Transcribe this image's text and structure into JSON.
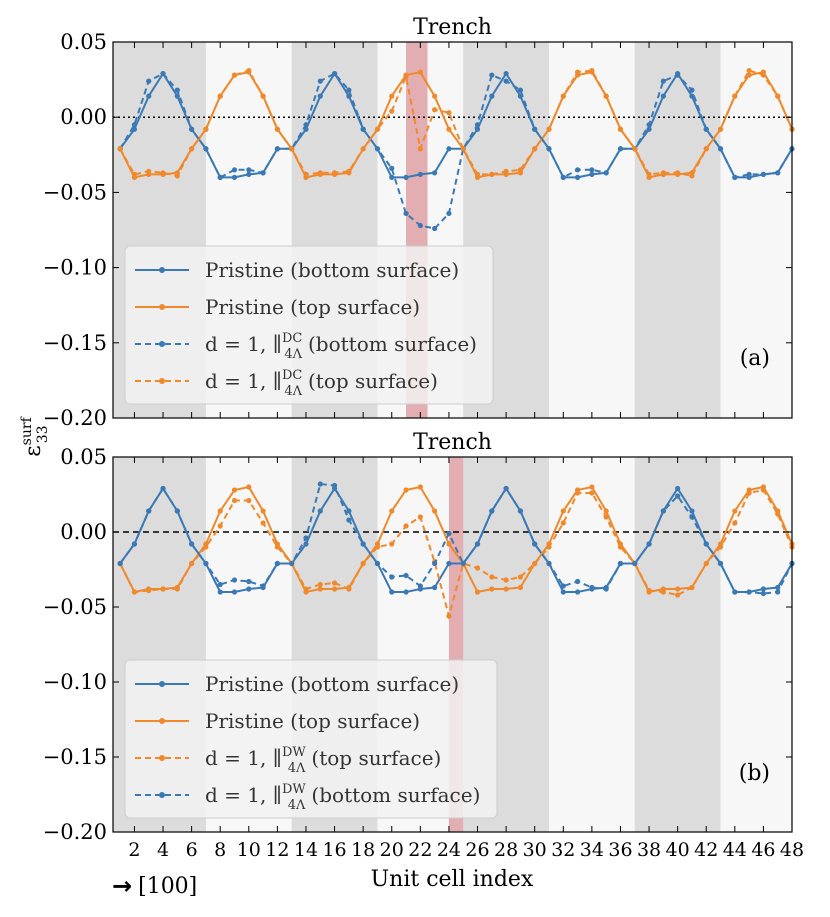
{
  "figure": {
    "y_axis_label_main": "ε",
    "y_axis_label_sub": "33",
    "y_axis_label_sup": "surf",
    "x_axis_label": "Unit cell index",
    "direction_note": "[100]",
    "arrow_icon": "→"
  },
  "colors": {
    "blue": "#3b79b5",
    "orange": "#f0892b",
    "trench": "#c8555a",
    "band_dark": "#dcdcdc",
    "band_light": "#f7f7f7"
  },
  "chart_data": [
    {
      "type": "line",
      "title": "Trench",
      "panel_label": "(a)",
      "xlim": [
        0.5,
        48
      ],
      "ylim": [
        -0.2,
        0.05
      ],
      "xticks": [
        2,
        4,
        6,
        8,
        10,
        12,
        14,
        16,
        18,
        20,
        22,
        24,
        26,
        28,
        30,
        32,
        34,
        36,
        38,
        40,
        42,
        44,
        46,
        48
      ],
      "yticks": [
        0.05,
        0.0,
        -0.05,
        -0.1,
        -0.15,
        -0.2
      ],
      "ytick_labels": [
        "0.05",
        "0.00",
        "−0.05",
        "−0.10",
        "−0.15",
        "−0.20"
      ],
      "zero_line": "dotted",
      "trench_x": [
        21,
        22.5
      ],
      "dark_bands": [
        [
          0.5,
          7
        ],
        [
          13,
          19
        ],
        [
          25,
          31
        ],
        [
          37,
          43
        ]
      ],
      "x": [
        1,
        2,
        3,
        4,
        5,
        6,
        7,
        8,
        9,
        10,
        11,
        12,
        13,
        14,
        15,
        16,
        17,
        18,
        19,
        20,
        21,
        22,
        23,
        24,
        25,
        26,
        27,
        28,
        29,
        30,
        31,
        32,
        33,
        34,
        35,
        36,
        37,
        38,
        39,
        40,
        41,
        42,
        43,
        44,
        45,
        46,
        47,
        48
      ],
      "series": [
        {
          "name": "Pristine (bottom surface)",
          "color": "blue",
          "dash": false,
          "values": [
            -0.021,
            -0.008,
            0.014,
            0.029,
            0.014,
            -0.008,
            -0.021,
            -0.04,
            -0.04,
            -0.038,
            -0.037,
            -0.021,
            -0.021,
            -0.008,
            0.014,
            0.029,
            0.014,
            -0.008,
            -0.021,
            -0.04,
            -0.04,
            -0.038,
            -0.037,
            -0.021,
            -0.021,
            -0.008,
            0.014,
            0.029,
            0.014,
            -0.008,
            -0.021,
            -0.04,
            -0.04,
            -0.038,
            -0.037,
            -0.021,
            -0.021,
            -0.008,
            0.014,
            0.029,
            0.014,
            -0.008,
            -0.021,
            -0.04,
            -0.04,
            -0.038,
            -0.037,
            -0.021
          ]
        },
        {
          "name": "Pristine (top surface)",
          "color": "orange",
          "dash": false,
          "values": [
            -0.021,
            -0.04,
            -0.038,
            -0.038,
            -0.037,
            -0.021,
            -0.008,
            0.014,
            0.028,
            0.03,
            0.014,
            -0.008,
            -0.021,
            -0.04,
            -0.038,
            -0.038,
            -0.037,
            -0.021,
            -0.008,
            0.014,
            0.028,
            0.03,
            0.014,
            -0.008,
            -0.021,
            -0.04,
            -0.038,
            -0.038,
            -0.037,
            -0.021,
            -0.008,
            0.014,
            0.028,
            0.03,
            0.014,
            -0.008,
            -0.021,
            -0.04,
            -0.038,
            -0.038,
            -0.037,
            -0.021,
            -0.008,
            0.014,
            0.028,
            0.03,
            0.014,
            -0.008
          ]
        },
        {
          "name": "d = 1, ∥DC 4Λ (bottom surface)",
          "color": "blue",
          "dash": true,
          "values": [
            -0.021,
            -0.005,
            0.024,
            0.029,
            0.018,
            -0.008,
            -0.021,
            -0.04,
            -0.035,
            -0.035,
            -0.037,
            -0.021,
            -0.021,
            -0.005,
            0.024,
            0.029,
            0.018,
            -0.008,
            -0.021,
            -0.034,
            -0.064,
            -0.072,
            -0.074,
            -0.064,
            -0.021,
            -0.005,
            0.028,
            0.024,
            0.018,
            -0.008,
            -0.021,
            -0.04,
            -0.035,
            -0.035,
            -0.037,
            -0.021,
            -0.021,
            -0.005,
            0.024,
            0.028,
            0.018,
            -0.008,
            -0.021,
            -0.04,
            -0.038,
            -0.038,
            -0.037,
            -0.021
          ]
        },
        {
          "name": "d = 1, ∥DC 4Λ (top surface)",
          "color": "orange",
          "dash": true,
          "values": [
            -0.021,
            -0.038,
            -0.036,
            -0.037,
            -0.039,
            -0.021,
            -0.008,
            0.014,
            0.028,
            0.031,
            0.014,
            -0.008,
            -0.021,
            -0.038,
            -0.037,
            -0.037,
            -0.036,
            -0.021,
            -0.008,
            0.004,
            0.027,
            -0.021,
            0.005,
            0.003,
            -0.021,
            -0.038,
            -0.038,
            -0.036,
            -0.035,
            -0.021,
            -0.008,
            0.014,
            0.03,
            0.031,
            0.014,
            -0.008,
            -0.021,
            -0.038,
            -0.037,
            -0.037,
            -0.039,
            -0.021,
            -0.008,
            0.014,
            0.031,
            0.028,
            0.014,
            -0.008
          ]
        }
      ],
      "legend_order": [
        0,
        1,
        2,
        3
      ],
      "legend": [
        {
          "main": "Pristine (bottom surface)",
          "color": "blue",
          "dash": false
        },
        {
          "main": "Pristine (top surface)",
          "color": "orange",
          "dash": false
        },
        {
          "prefix": "d = 1, ∥",
          "sup": "DC",
          "sub": "4Λ",
          "suffix": "(bottom surface)",
          "color": "blue",
          "dash": true
        },
        {
          "prefix": "d = 1, ∥",
          "sup": "DC",
          "sub": "4Λ",
          "suffix": "(top surface)",
          "color": "orange",
          "dash": true
        }
      ]
    },
    {
      "type": "line",
      "title": "Trench",
      "panel_label": "(b)",
      "xlim": [
        0.5,
        48
      ],
      "ylim": [
        -0.2,
        0.05
      ],
      "xticks": [
        2,
        4,
        6,
        8,
        10,
        12,
        14,
        16,
        18,
        20,
        22,
        24,
        26,
        28,
        30,
        32,
        34,
        36,
        38,
        40,
        42,
        44,
        46,
        48
      ],
      "xtick_labels": [
        "2",
        "4",
        "6",
        "8",
        "10",
        "12",
        "14",
        "16",
        "18",
        "20",
        "22",
        "24",
        "26",
        "28",
        "30",
        "32",
        "34",
        "36",
        "38",
        "40",
        "42",
        "44",
        "46",
        "48"
      ],
      "yticks": [
        0.05,
        0.0,
        -0.05,
        -0.1,
        -0.15,
        -0.2
      ],
      "ytick_labels": [
        "0.05",
        "0.00",
        "−0.05",
        "−0.10",
        "−0.15",
        "−0.20"
      ],
      "zero_line": "dashed",
      "trench_x": [
        24,
        25
      ],
      "dark_bands": [
        [
          0.5,
          7
        ],
        [
          13,
          19
        ],
        [
          25,
          31
        ],
        [
          37,
          43
        ]
      ],
      "x": [
        1,
        2,
        3,
        4,
        5,
        6,
        7,
        8,
        9,
        10,
        11,
        12,
        13,
        14,
        15,
        16,
        17,
        18,
        19,
        20,
        21,
        22,
        23,
        24,
        25,
        26,
        27,
        28,
        29,
        30,
        31,
        32,
        33,
        34,
        35,
        36,
        37,
        38,
        39,
        40,
        41,
        42,
        43,
        44,
        45,
        46,
        47,
        48
      ],
      "series": [
        {
          "name": "Pristine (bottom surface)",
          "color": "blue",
          "dash": false,
          "values": [
            -0.021,
            -0.008,
            0.014,
            0.029,
            0.014,
            -0.008,
            -0.021,
            -0.04,
            -0.04,
            -0.038,
            -0.037,
            -0.021,
            -0.021,
            -0.008,
            0.014,
            0.029,
            0.014,
            -0.008,
            -0.021,
            -0.04,
            -0.04,
            -0.038,
            -0.037,
            -0.021,
            -0.021,
            -0.008,
            0.014,
            0.029,
            0.014,
            -0.008,
            -0.021,
            -0.04,
            -0.04,
            -0.038,
            -0.037,
            -0.021,
            -0.021,
            -0.008,
            0.014,
            0.029,
            0.014,
            -0.008,
            -0.021,
            -0.04,
            -0.04,
            -0.038,
            -0.037,
            -0.021
          ]
        },
        {
          "name": "Pristine (top surface)",
          "color": "orange",
          "dash": false,
          "values": [
            -0.021,
            -0.04,
            -0.038,
            -0.038,
            -0.037,
            -0.021,
            -0.008,
            0.014,
            0.028,
            0.03,
            0.014,
            -0.008,
            -0.021,
            -0.04,
            -0.038,
            -0.038,
            -0.037,
            -0.021,
            -0.008,
            0.014,
            0.028,
            0.03,
            0.014,
            -0.008,
            -0.021,
            -0.04,
            -0.038,
            -0.038,
            -0.037,
            -0.021,
            -0.008,
            0.014,
            0.028,
            0.03,
            0.014,
            -0.008,
            -0.021,
            -0.04,
            -0.038,
            -0.038,
            -0.037,
            -0.021,
            -0.008,
            0.014,
            0.028,
            0.03,
            0.014,
            -0.008
          ]
        },
        {
          "name": "d = 1, ∥DW 4Λ (top surface)",
          "color": "orange",
          "dash": true,
          "values": [
            -0.021,
            -0.04,
            -0.039,
            -0.038,
            -0.038,
            -0.021,
            -0.01,
            0.004,
            0.021,
            0.021,
            0.006,
            -0.01,
            -0.021,
            -0.038,
            -0.035,
            -0.034,
            -0.038,
            -0.021,
            -0.01,
            -0.008,
            0.004,
            0.01,
            -0.02,
            -0.056,
            -0.021,
            -0.024,
            -0.03,
            -0.032,
            -0.03,
            -0.021,
            -0.01,
            0.006,
            0.026,
            0.026,
            0.01,
            -0.01,
            -0.021,
            -0.039,
            -0.04,
            -0.042,
            -0.037,
            -0.021,
            -0.01,
            0.006,
            0.026,
            0.028,
            0.012,
            -0.01
          ]
        },
        {
          "name": "d = 1, ∥DW 4Λ (bottom surface)",
          "color": "blue",
          "dash": true,
          "values": [
            -0.021,
            -0.008,
            0.014,
            0.029,
            0.014,
            -0.008,
            -0.021,
            -0.035,
            -0.032,
            -0.033,
            -0.036,
            -0.021,
            -0.021,
            -0.004,
            0.032,
            0.031,
            0.008,
            -0.008,
            -0.021,
            -0.03,
            -0.029,
            -0.036,
            -0.021,
            -0.001,
            -0.021,
            -0.008,
            0.014,
            0.029,
            0.014,
            -0.008,
            -0.021,
            -0.036,
            -0.033,
            -0.037,
            -0.038,
            -0.021,
            -0.021,
            -0.008,
            0.014,
            0.024,
            0.01,
            -0.008,
            -0.021,
            -0.04,
            -0.04,
            -0.041,
            -0.04,
            -0.021
          ]
        }
      ],
      "legend": [
        {
          "main": "Pristine (bottom surface)",
          "color": "blue",
          "dash": false
        },
        {
          "main": "Pristine (top surface)",
          "color": "orange",
          "dash": false
        },
        {
          "prefix": "d = 1, ∥",
          "sup": "DW",
          "sub": "4Λ",
          "suffix": "(top surface)",
          "color": "orange",
          "dash": true
        },
        {
          "prefix": "d = 1, ∥",
          "sup": "DW",
          "sub": "4Λ",
          "suffix": "(bottom surface)",
          "color": "blue",
          "dash": true
        }
      ]
    }
  ]
}
